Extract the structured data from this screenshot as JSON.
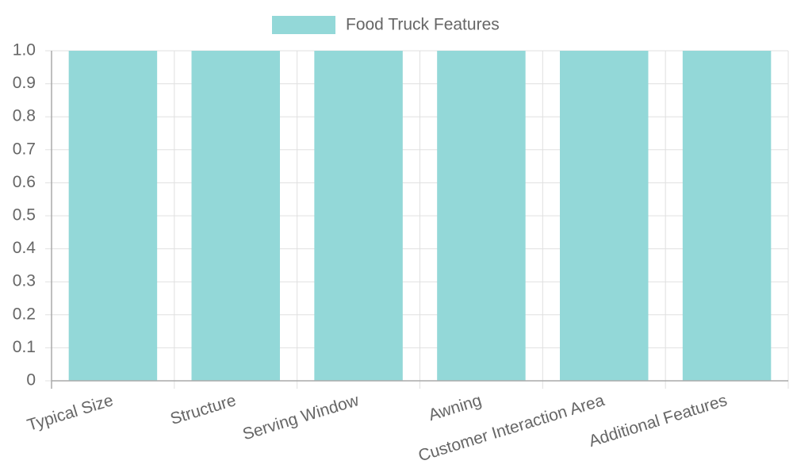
{
  "chart_data": {
    "type": "bar",
    "series": [
      {
        "name": "Food Truck Features",
        "color": "#93d8d8",
        "values": [
          1,
          1,
          1,
          1,
          1,
          1
        ]
      }
    ],
    "categories": [
      "Typical Size",
      "Structure",
      "Serving Window",
      "Awning",
      "Customer Interaction Area",
      "Additional Features"
    ],
    "ylim": [
      0,
      1
    ],
    "yticks": [
      0,
      0.1,
      0.2,
      0.3,
      0.4,
      0.5,
      0.6,
      0.7,
      0.8,
      0.9,
      {
        "value": 1,
        "label": "1.0"
      }
    ],
    "grid": true
  }
}
